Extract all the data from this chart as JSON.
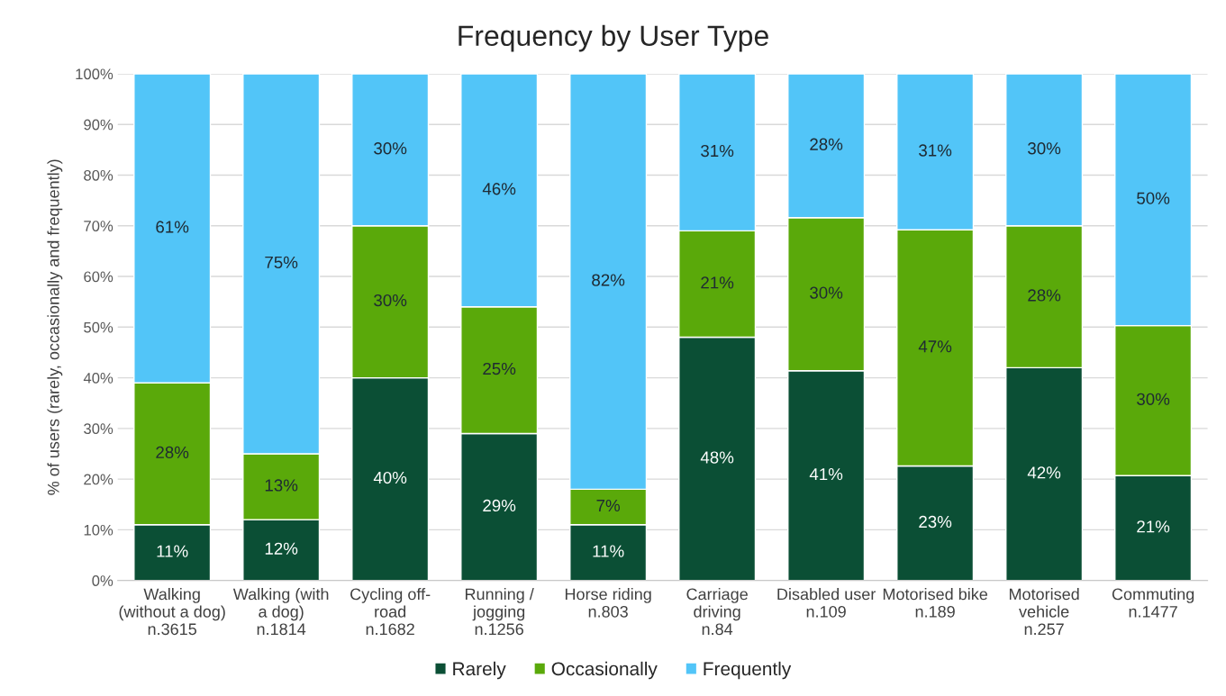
{
  "chart_data": {
    "type": "bar",
    "title": "Frequency by User Type",
    "ylabel": "% of users (rarely, occasionally and frequently)",
    "categories": [
      "Walking\n(without a dog)\nn.3615",
      "Walking (with\na dog)\nn.1814",
      "Cycling off-\nroad\nn.1682",
      "Running /\njogging\nn.1256",
      "Horse riding\nn.803",
      "Carriage\ndriving\nn.84",
      "Disabled user\nn.109",
      "Motorised bike\nn.189",
      "Motorised\nvehicle\nn.257",
      "Commuting\nn.1477"
    ],
    "stacked": true,
    "series": [
      {
        "name": "Rarely",
        "color": "#0b4f35",
        "values": [
          11,
          12,
          40,
          29,
          11,
          48,
          41.4,
          22.6,
          42,
          20.7
        ],
        "value_labels": [
          "11%",
          "12%",
          "40%",
          "29%",
          "11%",
          "48%",
          "41%",
          "23%",
          "42%",
          "21%"
        ]
      },
      {
        "name": "Occasionally",
        "color": "#5aa90a",
        "values": [
          28,
          13,
          30,
          25,
          7,
          21,
          30.2,
          46.6,
          28,
          29.6
        ],
        "value_labels": [
          "28%",
          "13%",
          "30%",
          "25%",
          "7%",
          "21%",
          "30%",
          "47%",
          "28%",
          "30%"
        ]
      },
      {
        "name": "Frequently",
        "color": "#52c5f8",
        "values": [
          61,
          75,
          30,
          46,
          82,
          31,
          28.4,
          30.8,
          30,
          49.7
        ],
        "value_labels": [
          "61%",
          "75%",
          "30%",
          "46%",
          "82%",
          "31%",
          "28%",
          "31%",
          "30%",
          "50%"
        ]
      }
    ],
    "ylim": [
      0,
      100
    ],
    "yticks": [
      {
        "value": 0,
        "label": "0%"
      },
      {
        "value": 10,
        "label": "10%"
      },
      {
        "value": 20,
        "label": "20%"
      },
      {
        "value": 30,
        "label": "30%"
      },
      {
        "value": 40,
        "label": "40%"
      },
      {
        "value": 50,
        "label": "50%"
      },
      {
        "value": 60,
        "label": "60%"
      },
      {
        "value": 70,
        "label": "70%"
      },
      {
        "value": 80,
        "label": "80%"
      },
      {
        "value": 90,
        "label": "90%"
      },
      {
        "value": 100,
        "label": "100%"
      }
    ],
    "grid": "y",
    "legend": "bottom"
  }
}
